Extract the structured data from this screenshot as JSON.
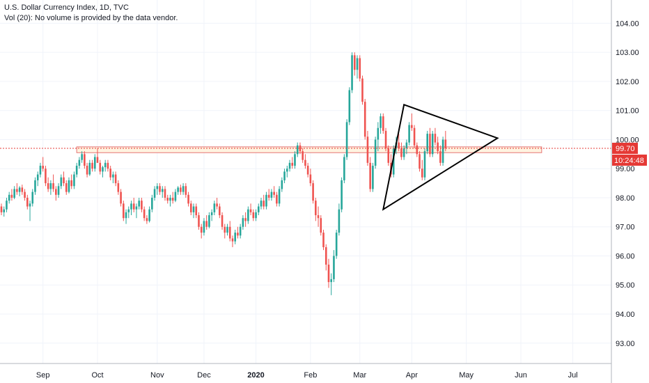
{
  "header": {
    "title": "U.S. Dollar Currency Index, 1D, TVC",
    "subtitle": "Vol (20): No volume is provided by the data vendor."
  },
  "colors": {
    "up": "#26a69a",
    "down": "#ef5350",
    "grid": "#f0f3fa",
    "axis_text": "#131722",
    "price_line": "#e53935",
    "zone_fill": "#fff3e0",
    "zone_stroke": "#e57373",
    "drawing": "#000000"
  },
  "axis": {
    "y_ticks": [
      "104.00",
      "103.00",
      "102.00",
      "101.00",
      "100.00",
      "99.00",
      "98.00",
      "97.00",
      "96.00",
      "95.00",
      "94.00",
      "93.00"
    ],
    "x_ticks": [
      "Sep",
      "Oct",
      "Nov",
      "Dec",
      "2020",
      "Feb",
      "Mar",
      "Apr",
      "May",
      "Jun",
      "Jul"
    ],
    "price_label": "99.70",
    "countdown_label": "10:24:48"
  },
  "chart_data": {
    "type": "candlestick",
    "title": "U.S. Dollar Currency Index, 1D, TVC",
    "ylim": [
      92.3,
      104.8
    ],
    "y_scale": "linear",
    "grid": true,
    "current_price": 99.7,
    "x_index_range": [
      0,
      216
    ],
    "x_tick_index": {
      "Sep": 16,
      "Oct": 37,
      "Nov": 60,
      "Dec": 78,
      "2020": 98,
      "Feb": 119,
      "Mar": 138,
      "Apr": 158,
      "May": 179,
      "Jun": 200,
      "Jul": 220
    },
    "zone": {
      "from_index": 29,
      "to_index": 208,
      "low": 99.55,
      "high": 99.75
    },
    "triangle": [
      {
        "i": 155,
        "p": 101.2
      },
      {
        "i": 191,
        "p": 100.05
      },
      {
        "i": 147,
        "p": 97.6
      }
    ],
    "candles": [
      [
        97.7,
        97.8,
        97.4,
        97.5
      ],
      [
        97.5,
        97.7,
        97.35,
        97.6
      ],
      [
        97.6,
        98.0,
        97.5,
        97.9
      ],
      [
        97.9,
        98.2,
        97.8,
        98.1
      ],
      [
        98.1,
        98.3,
        97.9,
        98.0
      ],
      [
        98.0,
        98.4,
        97.95,
        98.3
      ],
      [
        98.3,
        98.5,
        98.1,
        98.2
      ],
      [
        98.2,
        98.4,
        98.05,
        98.35
      ],
      [
        98.35,
        98.45,
        98.1,
        98.2
      ],
      [
        98.2,
        98.3,
        97.9,
        98.0
      ],
      [
        98.0,
        98.1,
        97.6,
        97.7
      ],
      [
        97.7,
        97.9,
        97.2,
        97.8
      ],
      [
        97.8,
        98.3,
        97.7,
        98.2
      ],
      [
        98.2,
        98.7,
        98.1,
        98.6
      ],
      [
        98.6,
        98.9,
        98.4,
        98.8
      ],
      [
        98.8,
        99.2,
        98.7,
        99.1
      ],
      [
        99.1,
        99.4,
        98.9,
        99.0
      ],
      [
        99.0,
        99.1,
        98.4,
        98.5
      ],
      [
        98.5,
        98.7,
        98.2,
        98.3
      ],
      [
        98.3,
        98.6,
        98.1,
        98.5
      ],
      [
        98.5,
        98.8,
        98.2,
        98.3
      ],
      [
        98.3,
        98.4,
        97.9,
        98.1
      ],
      [
        98.1,
        98.5,
        98.0,
        98.4
      ],
      [
        98.4,
        98.8,
        98.3,
        98.7
      ],
      [
        98.7,
        98.9,
        98.4,
        98.5
      ],
      [
        98.5,
        98.6,
        98.1,
        98.2
      ],
      [
        98.2,
        98.7,
        98.15,
        98.6
      ],
      [
        98.6,
        98.8,
        98.3,
        98.4
      ],
      [
        98.4,
        98.9,
        98.3,
        98.8
      ],
      [
        98.8,
        99.2,
        98.7,
        99.1
      ],
      [
        99.1,
        99.4,
        99.0,
        99.3
      ],
      [
        99.3,
        99.6,
        99.2,
        99.5
      ],
      [
        99.5,
        99.6,
        99.0,
        99.1
      ],
      [
        99.1,
        99.2,
        98.7,
        98.8
      ],
      [
        98.8,
        99.3,
        98.75,
        99.2
      ],
      [
        99.2,
        99.3,
        98.9,
        99.0
      ],
      [
        99.0,
        99.5,
        98.9,
        99.4
      ],
      [
        99.4,
        99.7,
        99.2,
        99.2
      ],
      [
        99.2,
        99.3,
        98.8,
        98.9
      ],
      [
        98.9,
        99.1,
        98.7,
        99.05
      ],
      [
        99.05,
        99.3,
        98.9,
        99.2
      ],
      [
        99.2,
        99.3,
        98.9,
        99.0
      ],
      [
        99.0,
        99.1,
        98.6,
        98.7
      ],
      [
        98.7,
        98.9,
        98.5,
        98.8
      ],
      [
        98.8,
        98.9,
        98.4,
        98.5
      ],
      [
        98.5,
        98.6,
        98.1,
        98.2
      ],
      [
        98.2,
        98.3,
        97.7,
        97.8
      ],
      [
        97.8,
        97.9,
        97.2,
        97.3
      ],
      [
        97.3,
        97.6,
        97.1,
        97.5
      ],
      [
        97.5,
        97.7,
        97.3,
        97.6
      ],
      [
        97.6,
        97.9,
        97.4,
        97.8
      ],
      [
        97.8,
        98.0,
        97.5,
        97.6
      ],
      [
        97.6,
        97.8,
        97.3,
        97.7
      ],
      [
        97.7,
        98.0,
        97.6,
        97.9
      ],
      [
        97.9,
        98.0,
        97.5,
        97.6
      ],
      [
        97.6,
        97.7,
        97.2,
        97.3
      ],
      [
        97.3,
        97.4,
        97.1,
        97.2
      ],
      [
        97.2,
        97.7,
        97.15,
        97.6
      ],
      [
        97.6,
        98.1,
        97.5,
        98.0
      ],
      [
        98.0,
        98.4,
        97.9,
        98.3
      ],
      [
        98.3,
        98.5,
        98.1,
        98.4
      ],
      [
        98.4,
        98.5,
        98.1,
        98.2
      ],
      [
        98.2,
        98.4,
        98.0,
        98.3
      ],
      [
        98.3,
        98.4,
        97.9,
        98.0
      ],
      [
        98.0,
        98.1,
        97.8,
        97.9
      ],
      [
        97.9,
        98.1,
        97.7,
        98.0
      ],
      [
        98.0,
        98.2,
        97.8,
        97.9
      ],
      [
        97.9,
        98.3,
        97.85,
        98.2
      ],
      [
        98.2,
        98.4,
        98.1,
        98.35
      ],
      [
        98.35,
        98.45,
        98.1,
        98.2
      ],
      [
        98.2,
        98.5,
        98.1,
        98.4
      ],
      [
        98.4,
        98.5,
        98.0,
        98.1
      ],
      [
        98.1,
        98.2,
        97.7,
        97.8
      ],
      [
        97.8,
        97.9,
        97.4,
        97.5
      ],
      [
        97.5,
        97.8,
        97.3,
        97.7
      ],
      [
        97.7,
        97.8,
        97.3,
        97.4
      ],
      [
        97.4,
        97.5,
        96.9,
        97.0
      ],
      [
        97.0,
        97.1,
        96.6,
        96.8
      ],
      [
        96.8,
        97.3,
        96.7,
        97.2
      ],
      [
        97.2,
        97.4,
        96.9,
        97.0
      ],
      [
        97.0,
        97.5,
        96.95,
        97.4
      ],
      [
        97.4,
        97.6,
        97.2,
        97.5
      ],
      [
        97.5,
        97.9,
        97.4,
        97.8
      ],
      [
        97.8,
        98.0,
        97.6,
        97.7
      ],
      [
        97.7,
        97.8,
        97.3,
        97.4
      ],
      [
        97.4,
        97.5,
        96.9,
        97.0
      ],
      [
        97.0,
        97.1,
        96.6,
        96.8
      ],
      [
        96.8,
        97.1,
        96.7,
        97.0
      ],
      [
        97.0,
        97.2,
        96.5,
        96.6
      ],
      [
        96.6,
        96.7,
        96.3,
        96.5
      ],
      [
        96.5,
        96.9,
        96.4,
        96.8
      ],
      [
        96.8,
        97.0,
        96.6,
        96.7
      ],
      [
        96.7,
        97.1,
        96.6,
        97.0
      ],
      [
        97.0,
        97.4,
        96.9,
        97.3
      ],
      [
        97.3,
        97.5,
        97.0,
        97.2
      ],
      [
        97.2,
        97.7,
        97.1,
        97.6
      ],
      [
        97.6,
        97.8,
        97.4,
        97.5
      ],
      [
        97.5,
        97.6,
        97.2,
        97.3
      ],
      [
        97.3,
        97.6,
        97.2,
        97.5
      ],
      [
        97.5,
        97.8,
        97.4,
        97.7
      ],
      [
        97.7,
        98.0,
        97.6,
        97.9
      ],
      [
        97.9,
        98.1,
        97.6,
        97.7
      ],
      [
        97.7,
        98.2,
        97.6,
        98.1
      ],
      [
        98.1,
        98.3,
        97.9,
        98.0
      ],
      [
        98.0,
        98.3,
        97.9,
        98.2
      ],
      [
        98.2,
        98.4,
        98.0,
        98.1
      ],
      [
        98.1,
        98.2,
        97.7,
        97.8
      ],
      [
        97.8,
        98.4,
        97.7,
        98.3
      ],
      [
        98.3,
        98.7,
        98.2,
        98.6
      ],
      [
        98.6,
        99.0,
        98.5,
        98.9
      ],
      [
        98.9,
        99.1,
        98.7,
        99.0
      ],
      [
        99.0,
        99.3,
        98.9,
        99.2
      ],
      [
        99.2,
        99.4,
        99.0,
        99.1
      ],
      [
        99.1,
        99.6,
        99.0,
        99.5
      ],
      [
        99.5,
        99.9,
        99.4,
        99.8
      ],
      [
        99.8,
        99.9,
        99.5,
        99.6
      ],
      [
        99.6,
        99.7,
        99.2,
        99.3
      ],
      [
        99.3,
        99.5,
        99.0,
        99.1
      ],
      [
        99.1,
        99.2,
        98.7,
        98.8
      ],
      [
        98.8,
        99.0,
        98.4,
        98.5
      ],
      [
        98.5,
        98.6,
        97.8,
        97.9
      ],
      [
        97.9,
        98.0,
        97.2,
        97.4
      ],
      [
        97.4,
        97.7,
        97.0,
        97.3
      ],
      [
        97.3,
        97.4,
        96.7,
        96.8
      ],
      [
        96.8,
        96.9,
        96.2,
        96.3
      ],
      [
        96.3,
        96.4,
        95.5,
        95.7
      ],
      [
        95.7,
        95.9,
        94.9,
        95.1
      ],
      [
        95.1,
        95.4,
        94.65,
        95.2
      ],
      [
        95.2,
        96.2,
        95.1,
        96.0
      ],
      [
        96.0,
        96.9,
        95.9,
        96.8
      ],
      [
        96.8,
        97.8,
        96.7,
        97.6
      ],
      [
        97.6,
        98.7,
        97.5,
        98.6
      ],
      [
        98.6,
        99.5,
        98.5,
        99.4
      ],
      [
        99.4,
        100.7,
        99.3,
        100.6
      ],
      [
        100.6,
        101.8,
        100.5,
        101.7
      ],
      [
        101.7,
        103.0,
        101.6,
        102.9
      ],
      [
        102.9,
        103.0,
        102.2,
        102.4
      ],
      [
        102.4,
        102.9,
        102.1,
        102.8
      ],
      [
        102.8,
        102.9,
        102.0,
        102.1
      ],
      [
        102.1,
        102.2,
        101.2,
        101.3
      ],
      [
        101.3,
        101.4,
        100.0,
        100.1
      ],
      [
        100.1,
        100.3,
        99.1,
        99.2
      ],
      [
        99.2,
        99.4,
        98.2,
        98.3
      ],
      [
        98.3,
        99.2,
        98.2,
        99.1
      ],
      [
        99.1,
        100.1,
        99.0,
        100.0
      ],
      [
        100.0,
        100.6,
        99.6,
        100.4
      ],
      [
        100.4,
        100.9,
        100.2,
        100.8
      ],
      [
        100.8,
        100.9,
        100.2,
        100.3
      ],
      [
        100.3,
        100.4,
        99.6,
        99.7
      ],
      [
        99.7,
        99.8,
        99.1,
        99.2
      ],
      [
        99.2,
        99.5,
        98.7,
        98.8
      ],
      [
        98.8,
        99.8,
        98.7,
        99.7
      ],
      [
        99.7,
        100.1,
        99.5,
        99.9
      ],
      [
        99.9,
        100.2,
        99.6,
        99.7
      ],
      [
        99.7,
        99.9,
        99.3,
        99.4
      ],
      [
        99.4,
        99.8,
        99.3,
        99.7
      ],
      [
        99.7,
        100.0,
        99.5,
        99.9
      ],
      [
        99.9,
        100.6,
        99.8,
        100.5
      ],
      [
        100.5,
        100.9,
        100.3,
        100.4
      ],
      [
        100.4,
        100.5,
        99.7,
        99.8
      ],
      [
        99.8,
        99.9,
        99.4,
        99.5
      ],
      [
        99.5,
        99.6,
        98.9,
        99.0
      ],
      [
        99.0,
        99.3,
        98.6,
        98.7
      ],
      [
        98.7,
        99.7,
        98.6,
        99.6
      ],
      [
        99.6,
        100.3,
        99.5,
        100.2
      ],
      [
        100.2,
        100.4,
        99.4,
        99.5
      ],
      [
        99.5,
        100.3,
        99.4,
        100.2
      ],
      [
        100.2,
        100.4,
        99.8,
        99.9
      ],
      [
        99.9,
        100.1,
        99.5,
        99.6
      ],
      [
        99.6,
        99.8,
        99.1,
        99.2
      ],
      [
        99.2,
        100.1,
        99.1,
        100.0
      ],
      [
        100.0,
        100.3,
        99.6,
        99.7
      ]
    ]
  }
}
